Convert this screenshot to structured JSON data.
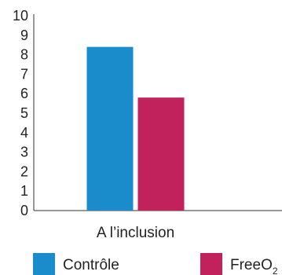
{
  "chart_data": {
    "type": "bar",
    "categories": [
      "A l’inclusion"
    ],
    "ylim": [
      0,
      10
    ],
    "yticks": [
      "0",
      "1",
      "2",
      "3",
      "4",
      "5",
      "6",
      "7",
      "8",
      "9",
      "10"
    ],
    "series": [
      {
        "name": "Contrôle",
        "values": [
          8.4
        ],
        "color": "#1a8ccc"
      },
      {
        "name": "FreeO",
        "name_subscript": "2",
        "values": [
          5.8
        ],
        "color": "#c2225c"
      }
    ],
    "grid": false,
    "legend": "bottom"
  }
}
